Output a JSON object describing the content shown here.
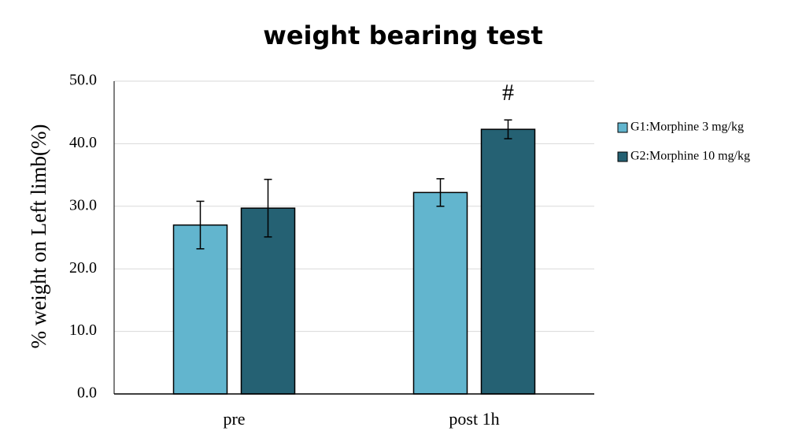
{
  "chart_data": {
    "type": "bar",
    "title": "weight bearing test",
    "y_label": "% weight on Left limb(%)",
    "categories": [
      "pre",
      "post 1h"
    ],
    "series": [
      {
        "name": "G1:Morphine 3 mg/kg",
        "color": "#62b5ce",
        "values": [
          27.0,
          32.2
        ],
        "errors": [
          3.8,
          2.2
        ]
      },
      {
        "name": "G2:Morphine 10 mg/kg",
        "color": "#256173",
        "values": [
          29.7,
          42.3
        ],
        "errors": [
          4.6,
          1.5
        ]
      }
    ],
    "annotation": "#",
    "ylim": [
      0,
      50
    ],
    "yticks": [
      {
        "value": 0,
        "label": "0.0"
      },
      {
        "value": 10,
        "label": "10.0"
      },
      {
        "value": 20,
        "label": "20.0"
      },
      {
        "value": 30,
        "label": "30.0"
      },
      {
        "value": 40,
        "label": "40.0"
      },
      {
        "value": 50,
        "label": "50.0"
      }
    ],
    "grid": true,
    "legend": "right"
  }
}
